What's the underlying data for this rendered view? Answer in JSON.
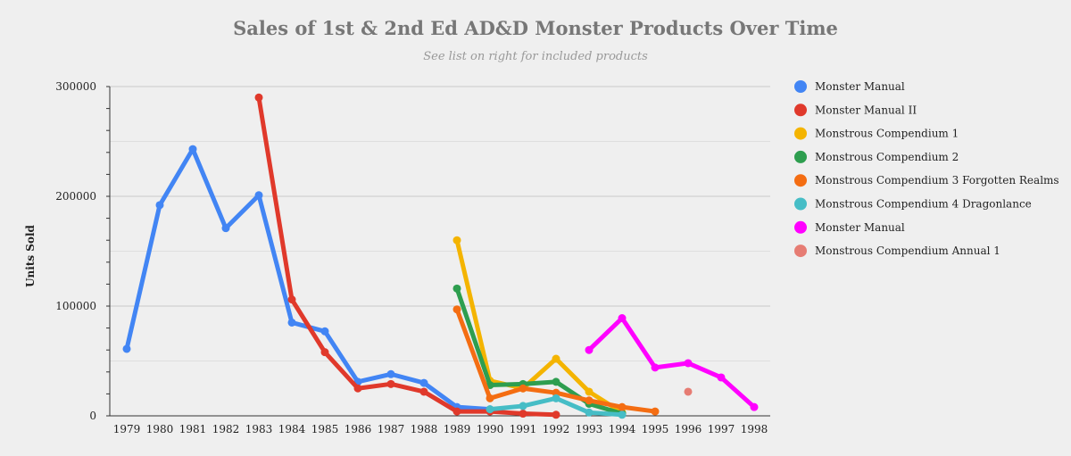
{
  "chart_data": {
    "type": "line",
    "title": "Sales of 1st & 2nd Ed AD&D Monster Products Over Time",
    "subtitle": "See list on right for included products",
    "xlabel": "",
    "ylabel": "Units Sold",
    "ylim": [
      0,
      300000
    ],
    "yticks": [
      0,
      100000,
      200000,
      300000
    ],
    "ytick_labels": [
      "0",
      "100000",
      "200000",
      "300000"
    ],
    "categories": [
      "1979",
      "1980",
      "1981",
      "1982",
      "1983",
      "1984",
      "1985",
      "1986",
      "1987",
      "1988",
      "1989",
      "1990",
      "1991",
      "1992",
      "1993",
      "1994",
      "1995",
      "1996",
      "1997",
      "1998"
    ],
    "legend_position": "right",
    "series": [
      {
        "name": "Monster Manual",
        "color": "#4285f4",
        "values": [
          61000,
          192000,
          243000,
          171000,
          201000,
          85000,
          77000,
          31000,
          38000,
          30000,
          8000,
          6000,
          null,
          null,
          null,
          null,
          null,
          null,
          null,
          null
        ]
      },
      {
        "name": "Monster Manual II",
        "color": "#e0392b",
        "values": [
          null,
          null,
          null,
          null,
          290000,
          106000,
          58000,
          25000,
          29000,
          22000,
          4000,
          4000,
          2000,
          1000,
          null,
          null,
          null,
          null,
          null,
          null
        ]
      },
      {
        "name": "Monstrous Compendium 1",
        "color": "#f4b400",
        "values": [
          null,
          null,
          null,
          null,
          null,
          null,
          null,
          null,
          null,
          null,
          160000,
          32000,
          25000,
          52000,
          22000,
          3000,
          null,
          null,
          null,
          null
        ]
      },
      {
        "name": "Monstrous Compendium 2",
        "color": "#2e9e4f",
        "values": [
          null,
          null,
          null,
          null,
          null,
          null,
          null,
          null,
          null,
          null,
          116000,
          28000,
          29000,
          31000,
          11000,
          2000,
          null,
          null,
          null,
          null
        ]
      },
      {
        "name": "Monstrous Compendium 3 Forgotten Realms",
        "color": "#f46d12",
        "values": [
          null,
          null,
          null,
          null,
          null,
          null,
          null,
          null,
          null,
          null,
          97000,
          16000,
          25000,
          21000,
          14000,
          8000,
          4000,
          null,
          null,
          null
        ]
      },
      {
        "name": "Monstrous Compendium 4 Dragonlance",
        "color": "#46bdc6",
        "values": [
          null,
          null,
          null,
          null,
          null,
          null,
          null,
          null,
          null,
          null,
          null,
          6000,
          9000,
          16000,
          3000,
          1000,
          null,
          null,
          null,
          null
        ]
      },
      {
        "name": "Monster Manual",
        "color": "#ff00ff",
        "values": [
          null,
          null,
          null,
          null,
          null,
          null,
          null,
          null,
          null,
          null,
          null,
          null,
          null,
          null,
          60000,
          89000,
          44000,
          48000,
          35000,
          8000
        ]
      },
      {
        "name": "Monstrous Compendium Annual 1",
        "color": "#e67c73",
        "values": [
          null,
          null,
          null,
          null,
          null,
          null,
          null,
          null,
          null,
          null,
          null,
          null,
          null,
          null,
          null,
          null,
          null,
          22000,
          null,
          null
        ]
      }
    ]
  }
}
